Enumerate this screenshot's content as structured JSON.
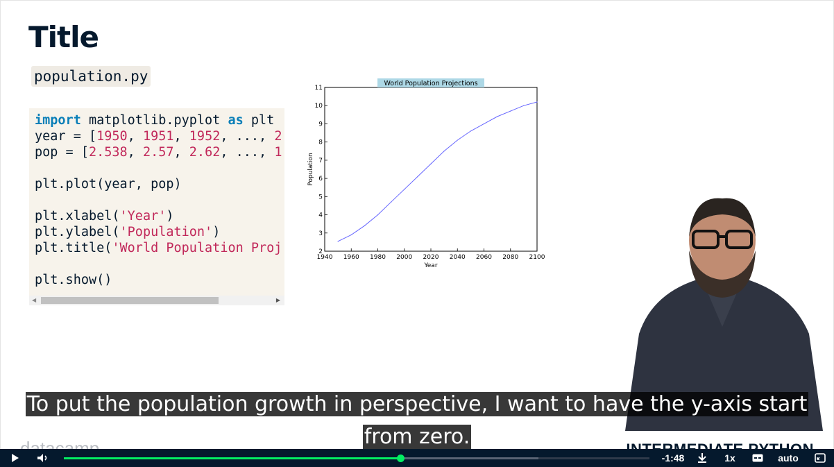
{
  "slide": {
    "title": "Title",
    "filename": "population.py",
    "code_lines": [
      [
        {
          "t": "import",
          "c": "kw"
        },
        {
          "t": " matplotlib.pyplot "
        },
        {
          "t": "as",
          "c": "kw"
        },
        {
          "t": " plt"
        }
      ],
      [
        {
          "t": "year = ["
        },
        {
          "t": "1950",
          "c": "num"
        },
        {
          "t": ", "
        },
        {
          "t": "1951",
          "c": "num"
        },
        {
          "t": ", "
        },
        {
          "t": "1952",
          "c": "num"
        },
        {
          "t": ", ..., "
        },
        {
          "t": "2",
          "c": "num"
        }
      ],
      [
        {
          "t": "pop = ["
        },
        {
          "t": "2.538",
          "c": "num"
        },
        {
          "t": ", "
        },
        {
          "t": "2.57",
          "c": "num"
        },
        {
          "t": ", "
        },
        {
          "t": "2.62",
          "c": "num"
        },
        {
          "t": ", ..., "
        },
        {
          "t": "1",
          "c": "num"
        }
      ],
      [],
      [
        {
          "t": "plt.plot(year, pop)"
        }
      ],
      [],
      [
        {
          "t": "plt.xlabel("
        },
        {
          "t": "'Year'",
          "c": "str"
        },
        {
          "t": ")"
        }
      ],
      [
        {
          "t": "plt.ylabel("
        },
        {
          "t": "'Population'",
          "c": "str"
        },
        {
          "t": ")"
        }
      ],
      [
        {
          "t": "plt.title("
        },
        {
          "t": "'World Population Proj",
          "c": "str"
        }
      ],
      [],
      [
        {
          "t": "plt.show()"
        }
      ]
    ],
    "logo_text": "datacamp",
    "course_title": "INTERMEDIATE PYTHON"
  },
  "chart_data": {
    "type": "line",
    "title": "World Population Projections",
    "xlabel": "Year",
    "ylabel": "Population",
    "xlim": [
      1940,
      2100
    ],
    "ylim": [
      2,
      11
    ],
    "xticks": [
      1940,
      1960,
      1980,
      2000,
      2020,
      2040,
      2060,
      2080,
      2100
    ],
    "yticks": [
      2,
      3,
      4,
      5,
      6,
      7,
      8,
      9,
      10,
      11
    ],
    "series": [
      {
        "color": "#6666ff",
        "x": [
          1950,
          1960,
          1970,
          1980,
          1990,
          2000,
          2010,
          2020,
          2030,
          2040,
          2050,
          2060,
          2070,
          2080,
          2090,
          2100
        ],
        "y": [
          2.54,
          2.9,
          3.4,
          4.0,
          4.7,
          5.4,
          6.1,
          6.8,
          7.5,
          8.1,
          8.6,
          9.0,
          9.4,
          9.7,
          10.0,
          10.2
        ]
      }
    ]
  },
  "caption": {
    "line1": "To put the population growth in perspective, I want to have the y-axis start",
    "line2": "from zero."
  },
  "player": {
    "time_remaining": "-1:48",
    "speed": "1x",
    "quality": "auto",
    "progress_fraction": 0.575,
    "buffered_fraction": 0.81,
    "accent_color": "#03ef62"
  }
}
